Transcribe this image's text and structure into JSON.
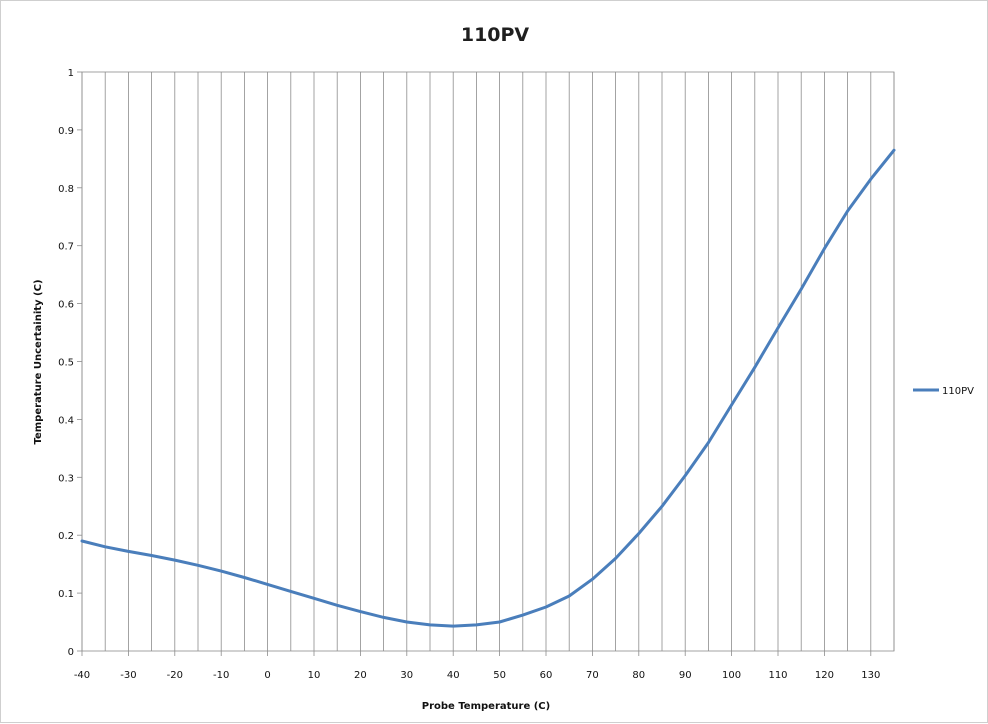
{
  "chart_data": {
    "type": "line",
    "title": "110PV",
    "xlabel": "Probe Temperature  (C)",
    "ylabel": "Temperature Uncertainity  (C)",
    "xlim": [
      -40,
      135
    ],
    "ylim": [
      0,
      1
    ],
    "x_ticks": [
      -40,
      -30,
      -20,
      -10,
      0,
      10,
      20,
      30,
      40,
      50,
      60,
      70,
      80,
      90,
      100,
      110,
      120,
      130
    ],
    "y_ticks": [
      0,
      0.1,
      0.2,
      0.3,
      0.4,
      0.5,
      0.6,
      0.7,
      0.8,
      0.9,
      1
    ],
    "y_tick_labels": [
      "0",
      "0.1",
      "0.2",
      "0.3",
      "0.4",
      "0.5",
      "0.6",
      "0.7",
      "0.8",
      "0.9",
      "1"
    ],
    "grid": "vertical",
    "legend": "right",
    "series": [
      {
        "name": "110PV",
        "color": "#4a7ebb",
        "x": [
          -40,
          -35,
          -30,
          -25,
          -20,
          -15,
          -10,
          -5,
          0,
          5,
          10,
          15,
          20,
          25,
          30,
          35,
          40,
          45,
          50,
          55,
          60,
          65,
          70,
          75,
          80,
          85,
          90,
          95,
          100,
          105,
          110,
          115,
          120,
          125,
          130,
          135
        ],
        "y": [
          0.19,
          0.18,
          0.172,
          0.165,
          0.157,
          0.148,
          0.138,
          0.127,
          0.115,
          0.103,
          0.091,
          0.079,
          0.068,
          0.058,
          0.05,
          0.045,
          0.043,
          0.045,
          0.05,
          0.062,
          0.076,
          0.095,
          0.124,
          0.16,
          0.203,
          0.25,
          0.303,
          0.36,
          0.425,
          0.49,
          0.558,
          0.625,
          0.695,
          0.76,
          0.815,
          0.865
        ]
      }
    ]
  }
}
